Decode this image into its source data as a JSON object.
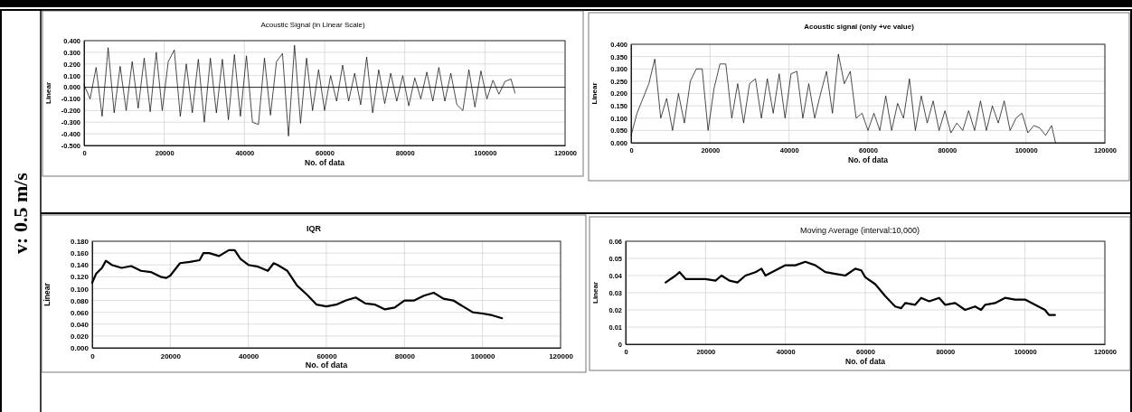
{
  "chart_data": [
    {
      "type": "other",
      "annotations": [
        "v: 0.5 m/s"
      ]
    },
    {
      "type": "line",
      "title": "Acoustic  Signal  (in Linear Scale)",
      "xlabel": "No. of data",
      "ylabel": "Linear",
      "grid": true,
      "xlim": [
        0,
        120000
      ],
      "xticks": [
        0,
        20000,
        40000,
        60000,
        80000,
        100000,
        120000
      ],
      "ylim": [
        -0.5,
        0.4
      ],
      "yticks": [
        {
          "value": -0.5,
          "label": "-0.500"
        },
        {
          "value": -0.4,
          "label": "-0.400"
        },
        {
          "value": -0.3,
          "label": "-0.300"
        },
        {
          "value": -0.2,
          "label": "-0.200"
        },
        {
          "value": -0.1,
          "label": "-0.100"
        },
        {
          "value": 0,
          "label": "0.000"
        },
        {
          "value": 0.1,
          "label": "0.100"
        },
        {
          "value": 0.2,
          "label": "0.200"
        },
        {
          "value": 0.3,
          "label": "0.300"
        },
        {
          "value": 0.4,
          "label": "0.400"
        }
      ],
      "ref_lines": [
        {
          "axis": "y",
          "value": 0,
          "color": "#000000"
        }
      ],
      "x": [
        0,
        1500,
        3000,
        4500,
        6000,
        7500,
        9000,
        10500,
        12000,
        13500,
        15000,
        16500,
        18000,
        19500,
        21000,
        22500,
        24000,
        25500,
        27000,
        28500,
        30000,
        31500,
        33000,
        34500,
        36000,
        37500,
        39000,
        40500,
        42000,
        43500,
        45000,
        46500,
        48000,
        49500,
        51000,
        52500,
        54000,
        55500,
        57000,
        58500,
        60000,
        61500,
        63000,
        64500,
        66000,
        67500,
        69000,
        70500,
        72000,
        73500,
        75000,
        76500,
        78000,
        79500,
        81000,
        82500,
        84000,
        85500,
        87000,
        88500,
        90000,
        91500,
        93000,
        94500,
        96000,
        97500,
        99000,
        100500,
        102000,
        103500,
        105000,
        106500,
        107500
      ],
      "series": [
        {
          "color": "#000000",
          "values": [
            0.02,
            -0.1,
            0.17,
            -0.25,
            0.34,
            -0.22,
            0.18,
            -0.2,
            0.22,
            -0.18,
            0.25,
            -0.21,
            0.3,
            -0.2,
            0.22,
            0.32,
            -0.25,
            0.2,
            -0.22,
            0.24,
            -0.3,
            0.25,
            -0.22,
            0.24,
            -0.28,
            0.28,
            -0.25,
            0.27,
            -0.3,
            -0.32,
            0.25,
            -0.24,
            0.22,
            0.29,
            -0.42,
            0.36,
            -0.31,
            0.25,
            -0.2,
            0.15,
            -0.2,
            0.1,
            -0.12,
            0.19,
            -0.12,
            0.12,
            -0.15,
            0.26,
            -0.22,
            0.15,
            -0.14,
            0.12,
            -0.12,
            0.1,
            -0.16,
            0.08,
            -0.1,
            0.13,
            -0.12,
            0.17,
            -0.12,
            0.12,
            -0.15,
            -0.2,
            0.15,
            -0.17,
            0.14,
            -0.1,
            0.06,
            -0.06,
            0.05,
            0.07,
            -0.05
          ]
        }
      ]
    },
    {
      "type": "line",
      "title": "Acoustic signal (only +ve  value)",
      "xlabel": "No. of data",
      "ylabel": "Linear",
      "grid": true,
      "xlim": [
        0,
        120000
      ],
      "xticks": [
        0,
        20000,
        40000,
        60000,
        80000,
        100000,
        120000
      ],
      "ylim": [
        0,
        0.4
      ],
      "yticks": [
        {
          "value": 0,
          "label": "0.000"
        },
        {
          "value": 0.05,
          "label": "0.050"
        },
        {
          "value": 0.1,
          "label": "0.100"
        },
        {
          "value": 0.15,
          "label": "0.150"
        },
        {
          "value": 0.2,
          "label": "0.200"
        },
        {
          "value": 0.25,
          "label": "0.250"
        },
        {
          "value": 0.3,
          "label": "0.300"
        },
        {
          "value": 0.35,
          "label": "0.350"
        },
        {
          "value": 0.4,
          "label": "0.400"
        }
      ],
      "x": [
        0,
        1500,
        3000,
        4500,
        6000,
        7500,
        9000,
        10500,
        12000,
        13500,
        15000,
        16500,
        18000,
        19500,
        21000,
        22500,
        24000,
        25500,
        27000,
        28500,
        30000,
        31500,
        33000,
        34500,
        36000,
        37500,
        39000,
        40500,
        42000,
        43500,
        45000,
        46500,
        48000,
        49500,
        51000,
        52500,
        54000,
        55500,
        57000,
        58500,
        60000,
        61500,
        63000,
        64500,
        66000,
        67500,
        69000,
        70500,
        72000,
        73500,
        75000,
        76500,
        78000,
        79500,
        81000,
        82500,
        84000,
        85500,
        87000,
        88500,
        90000,
        91500,
        93000,
        94500,
        96000,
        97500,
        99000,
        100500,
        102000,
        103500,
        105000,
        106500,
        107500
      ],
      "series": [
        {
          "color": "#000000",
          "values": [
            0.03,
            0.12,
            0.18,
            0.24,
            0.34,
            0.1,
            0.18,
            0.05,
            0.2,
            0.08,
            0.25,
            0.3,
            0.3,
            0.05,
            0.22,
            0.32,
            0.32,
            0.1,
            0.24,
            0.08,
            0.24,
            0.26,
            0.1,
            0.26,
            0.12,
            0.28,
            0.1,
            0.28,
            0.29,
            0.1,
            0.24,
            0.1,
            0.2,
            0.29,
            0.12,
            0.36,
            0.24,
            0.29,
            0.1,
            0.12,
            0.05,
            0.12,
            0.05,
            0.19,
            0.05,
            0.16,
            0.1,
            0.26,
            0.05,
            0.19,
            0.08,
            0.17,
            0.05,
            0.13,
            0.04,
            0.08,
            0.05,
            0.13,
            0.05,
            0.17,
            0.05,
            0.15,
            0.08,
            0.17,
            0.05,
            0.1,
            0.12,
            0.04,
            0.07,
            0.06,
            0.03,
            0.07,
            0
          ]
        }
      ]
    },
    {
      "type": "line",
      "title": "IQR",
      "xlabel": "No. of data",
      "ylabel": "Linear",
      "grid": true,
      "xlim": [
        0,
        120000
      ],
      "xticks": [
        0,
        20000,
        40000,
        60000,
        80000,
        100000,
        120000
      ],
      "ylim": [
        0,
        0.18
      ],
      "yticks": [
        {
          "value": 0,
          "label": "0.000"
        },
        {
          "value": 0.02,
          "label": "0.020"
        },
        {
          "value": 0.04,
          "label": "0.040"
        },
        {
          "value": 0.06,
          "label": "0.060"
        },
        {
          "value": 0.08,
          "label": "0.080"
        },
        {
          "value": 0.1,
          "label": "0.100"
        },
        {
          "value": 0.12,
          "label": "0.120"
        },
        {
          "value": 0.14,
          "label": "0.140"
        },
        {
          "value": 0.16,
          "label": "0.160"
        },
        {
          "value": 0.18,
          "label": "0.180"
        }
      ],
      "x": [
        0,
        1000,
        2500,
        3500,
        5000,
        7500,
        10000,
        12500,
        15000,
        17500,
        19000,
        20000,
        22500,
        25000,
        27500,
        28500,
        30000,
        32500,
        35000,
        36500,
        38000,
        40000,
        42500,
        45000,
        46500,
        47500,
        50000,
        52500,
        55000,
        57500,
        60000,
        62500,
        65000,
        67500,
        70000,
        72500,
        75000,
        77500,
        80000,
        82500,
        85000,
        87500,
        90000,
        92500,
        95000,
        97500,
        100000,
        102500,
        105000
      ],
      "series": [
        {
          "color": "#000000",
          "values": [
            0.11,
            0.125,
            0.135,
            0.147,
            0.14,
            0.135,
            0.138,
            0.13,
            0.128,
            0.12,
            0.118,
            0.122,
            0.143,
            0.145,
            0.148,
            0.16,
            0.16,
            0.155,
            0.165,
            0.165,
            0.15,
            0.14,
            0.137,
            0.13,
            0.143,
            0.14,
            0.13,
            0.105,
            0.09,
            0.073,
            0.07,
            0.073,
            0.08,
            0.085,
            0.075,
            0.073,
            0.065,
            0.068,
            0.08,
            0.08,
            0.088,
            0.093,
            0.083,
            0.08,
            0.07,
            0.06,
            0.058,
            0.055,
            0.05
          ]
        }
      ]
    },
    {
      "type": "line",
      "title": "Moving Average (interval:10,000)",
      "xlabel": "No. of data",
      "ylabel": "Linear",
      "grid": true,
      "xlim": [
        0,
        120000
      ],
      "xticks": [
        0,
        20000,
        40000,
        60000,
        80000,
        100000,
        120000
      ],
      "ylim": [
        0,
        0.06
      ],
      "yticks": [
        0,
        0.01,
        0.02,
        0.03,
        0.04,
        0.05,
        0.06
      ],
      "x": [
        10000,
        12500,
        13500,
        15000,
        17500,
        20000,
        22500,
        24000,
        26000,
        28000,
        30000,
        32500,
        34000,
        35000,
        37500,
        40000,
        42500,
        45000,
        47500,
        50000,
        52500,
        55000,
        57500,
        59000,
        60000,
        62500,
        65000,
        67500,
        69000,
        70000,
        72500,
        74000,
        76000,
        78500,
        80000,
        82500,
        85000,
        87500,
        89000,
        90000,
        92500,
        95000,
        97500,
        100000,
        102500,
        105000,
        106000,
        107500
      ],
      "series": [
        {
          "color": "#000000",
          "values": [
            0.036,
            0.04,
            0.042,
            0.038,
            0.038,
            0.038,
            0.037,
            0.04,
            0.037,
            0.036,
            0.04,
            0.042,
            0.044,
            0.04,
            0.043,
            0.046,
            0.046,
            0.048,
            0.046,
            0.042,
            0.041,
            0.04,
            0.044,
            0.043,
            0.039,
            0.035,
            0.028,
            0.022,
            0.021,
            0.024,
            0.023,
            0.027,
            0.025,
            0.027,
            0.023,
            0.024,
            0.02,
            0.022,
            0.02,
            0.023,
            0.024,
            0.027,
            0.026,
            0.026,
            0.023,
            0.02,
            0.017,
            0.017
          ]
        }
      ]
    }
  ]
}
